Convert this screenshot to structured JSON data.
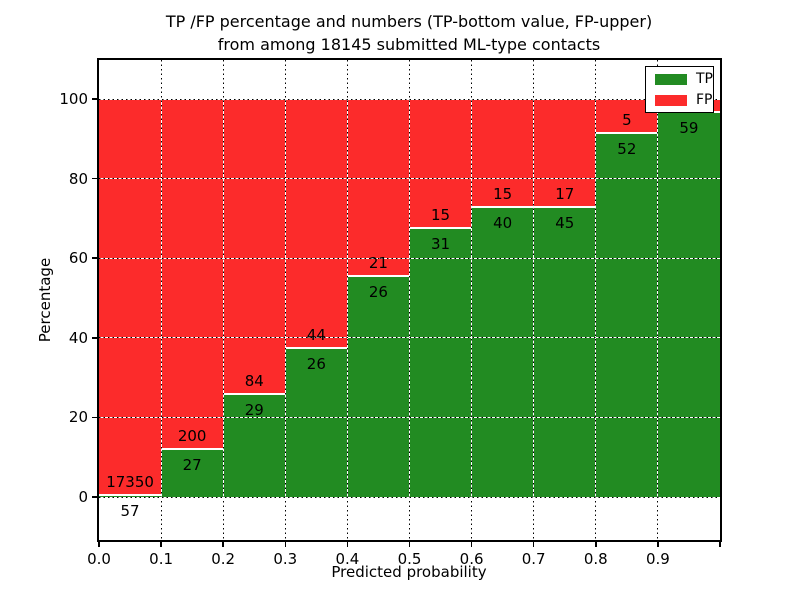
{
  "chart_data": {
    "type": "bar",
    "stacked": true,
    "normalized": "percent",
    "title_lines": [
      "TP /FP percentage and numbers (TP-bottom value, FP-upper)",
      "from among 18145 submitted ML-type contacts"
    ],
    "total_submitted_contacts": 18145,
    "xlabel": "Predicted probability",
    "ylabel": "Percentage",
    "x_tick_labels": [
      "0.0",
      "0.1",
      "0.2",
      "0.3",
      "0.4",
      "0.5",
      "0.6",
      "0.7",
      "0.8",
      "0.9"
    ],
    "y_tick_labels": [
      "0",
      "20",
      "40",
      "60",
      "80",
      "100"
    ],
    "y_tick_values": [
      0,
      20,
      40,
      60,
      80,
      100
    ],
    "xlim": [
      0.0,
      1.0
    ],
    "ylim": [
      -10.8,
      109.8
    ],
    "grid": "dotted",
    "legend": {
      "position": "upper right",
      "entries": [
        {
          "label": "TP",
          "color": "#228b22"
        },
        {
          "label": "FP",
          "color": "#fc2b2b"
        }
      ]
    },
    "bins": [
      {
        "x_start": 0.0,
        "x_end": 0.1,
        "tp_count": 57,
        "fp_count": 17350,
        "tp_percent": 0.33,
        "fp_label_visible": true
      },
      {
        "x_start": 0.1,
        "x_end": 0.2,
        "tp_count": 27,
        "fp_count": 200,
        "tp_percent": 11.89,
        "fp_label_visible": true
      },
      {
        "x_start": 0.2,
        "x_end": 0.3,
        "tp_count": 29,
        "fp_count": 84,
        "tp_percent": 25.66,
        "fp_label_visible": true
      },
      {
        "x_start": 0.3,
        "x_end": 0.4,
        "tp_count": 26,
        "fp_count": 44,
        "tp_percent": 37.14,
        "fp_label_visible": true
      },
      {
        "x_start": 0.4,
        "x_end": 0.5,
        "tp_count": 26,
        "fp_count": 21,
        "tp_percent": 55.32,
        "fp_label_visible": true
      },
      {
        "x_start": 0.5,
        "x_end": 0.6,
        "tp_count": 31,
        "fp_count": 15,
        "tp_percent": 67.39,
        "fp_label_visible": true
      },
      {
        "x_start": 0.6,
        "x_end": 0.7,
        "tp_count": 40,
        "fp_count": 15,
        "tp_percent": 72.73,
        "fp_label_visible": true
      },
      {
        "x_start": 0.7,
        "x_end": 0.8,
        "tp_count": 45,
        "fp_count": 17,
        "tp_percent": 72.58,
        "fp_label_visible": true
      },
      {
        "x_start": 0.8,
        "x_end": 0.9,
        "tp_count": 52,
        "fp_count": 5,
        "tp_percent": 91.23,
        "fp_label_visible": true
      },
      {
        "x_start": 0.9,
        "x_end": 1.0,
        "tp_count": 59,
        "fp_count": null,
        "tp_percent": 96.5,
        "fp_label_visible": false
      }
    ]
  },
  "colors": {
    "tp": "#228b22",
    "fp": "#fc2b2b",
    "grid": "#000000",
    "frame": "#000000",
    "background": "#ffffff",
    "bar_edge": "#ffffff"
  }
}
